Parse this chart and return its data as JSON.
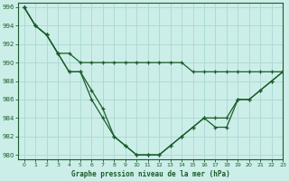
{
  "title": "Graphe pression niveau de la mer (hPa)",
  "background_color": "#cceee8",
  "grid_color": "#aad8d2",
  "line_color": "#1a5c2a",
  "xlim": [
    -0.5,
    23
  ],
  "ylim": [
    979.5,
    996.5
  ],
  "yticks": [
    980,
    982,
    984,
    986,
    988,
    990,
    992,
    994,
    996
  ],
  "xticks": [
    0,
    1,
    2,
    3,
    4,
    5,
    6,
    7,
    8,
    9,
    10,
    11,
    12,
    13,
    14,
    15,
    16,
    17,
    18,
    19,
    20,
    21,
    22,
    23
  ],
  "series": [
    [
      996,
      994,
      993,
      991,
      989,
      989,
      986,
      984,
      982,
      981,
      980,
      980,
      980,
      981,
      982,
      983,
      984,
      983,
      983,
      986,
      986,
      987,
      988,
      989
    ],
    [
      996,
      994,
      993,
      991,
      991,
      990,
      990,
      990,
      990,
      990,
      990,
      990,
      990,
      990,
      990,
      989,
      989,
      989,
      989,
      989,
      989,
      989,
      989,
      989
    ],
    [
      996,
      994,
      993,
      991,
      989,
      989,
      987,
      985,
      982,
      981,
      980,
      980,
      980,
      981,
      982,
      983,
      984,
      984,
      984,
      986,
      986,
      987,
      988,
      989
    ]
  ]
}
